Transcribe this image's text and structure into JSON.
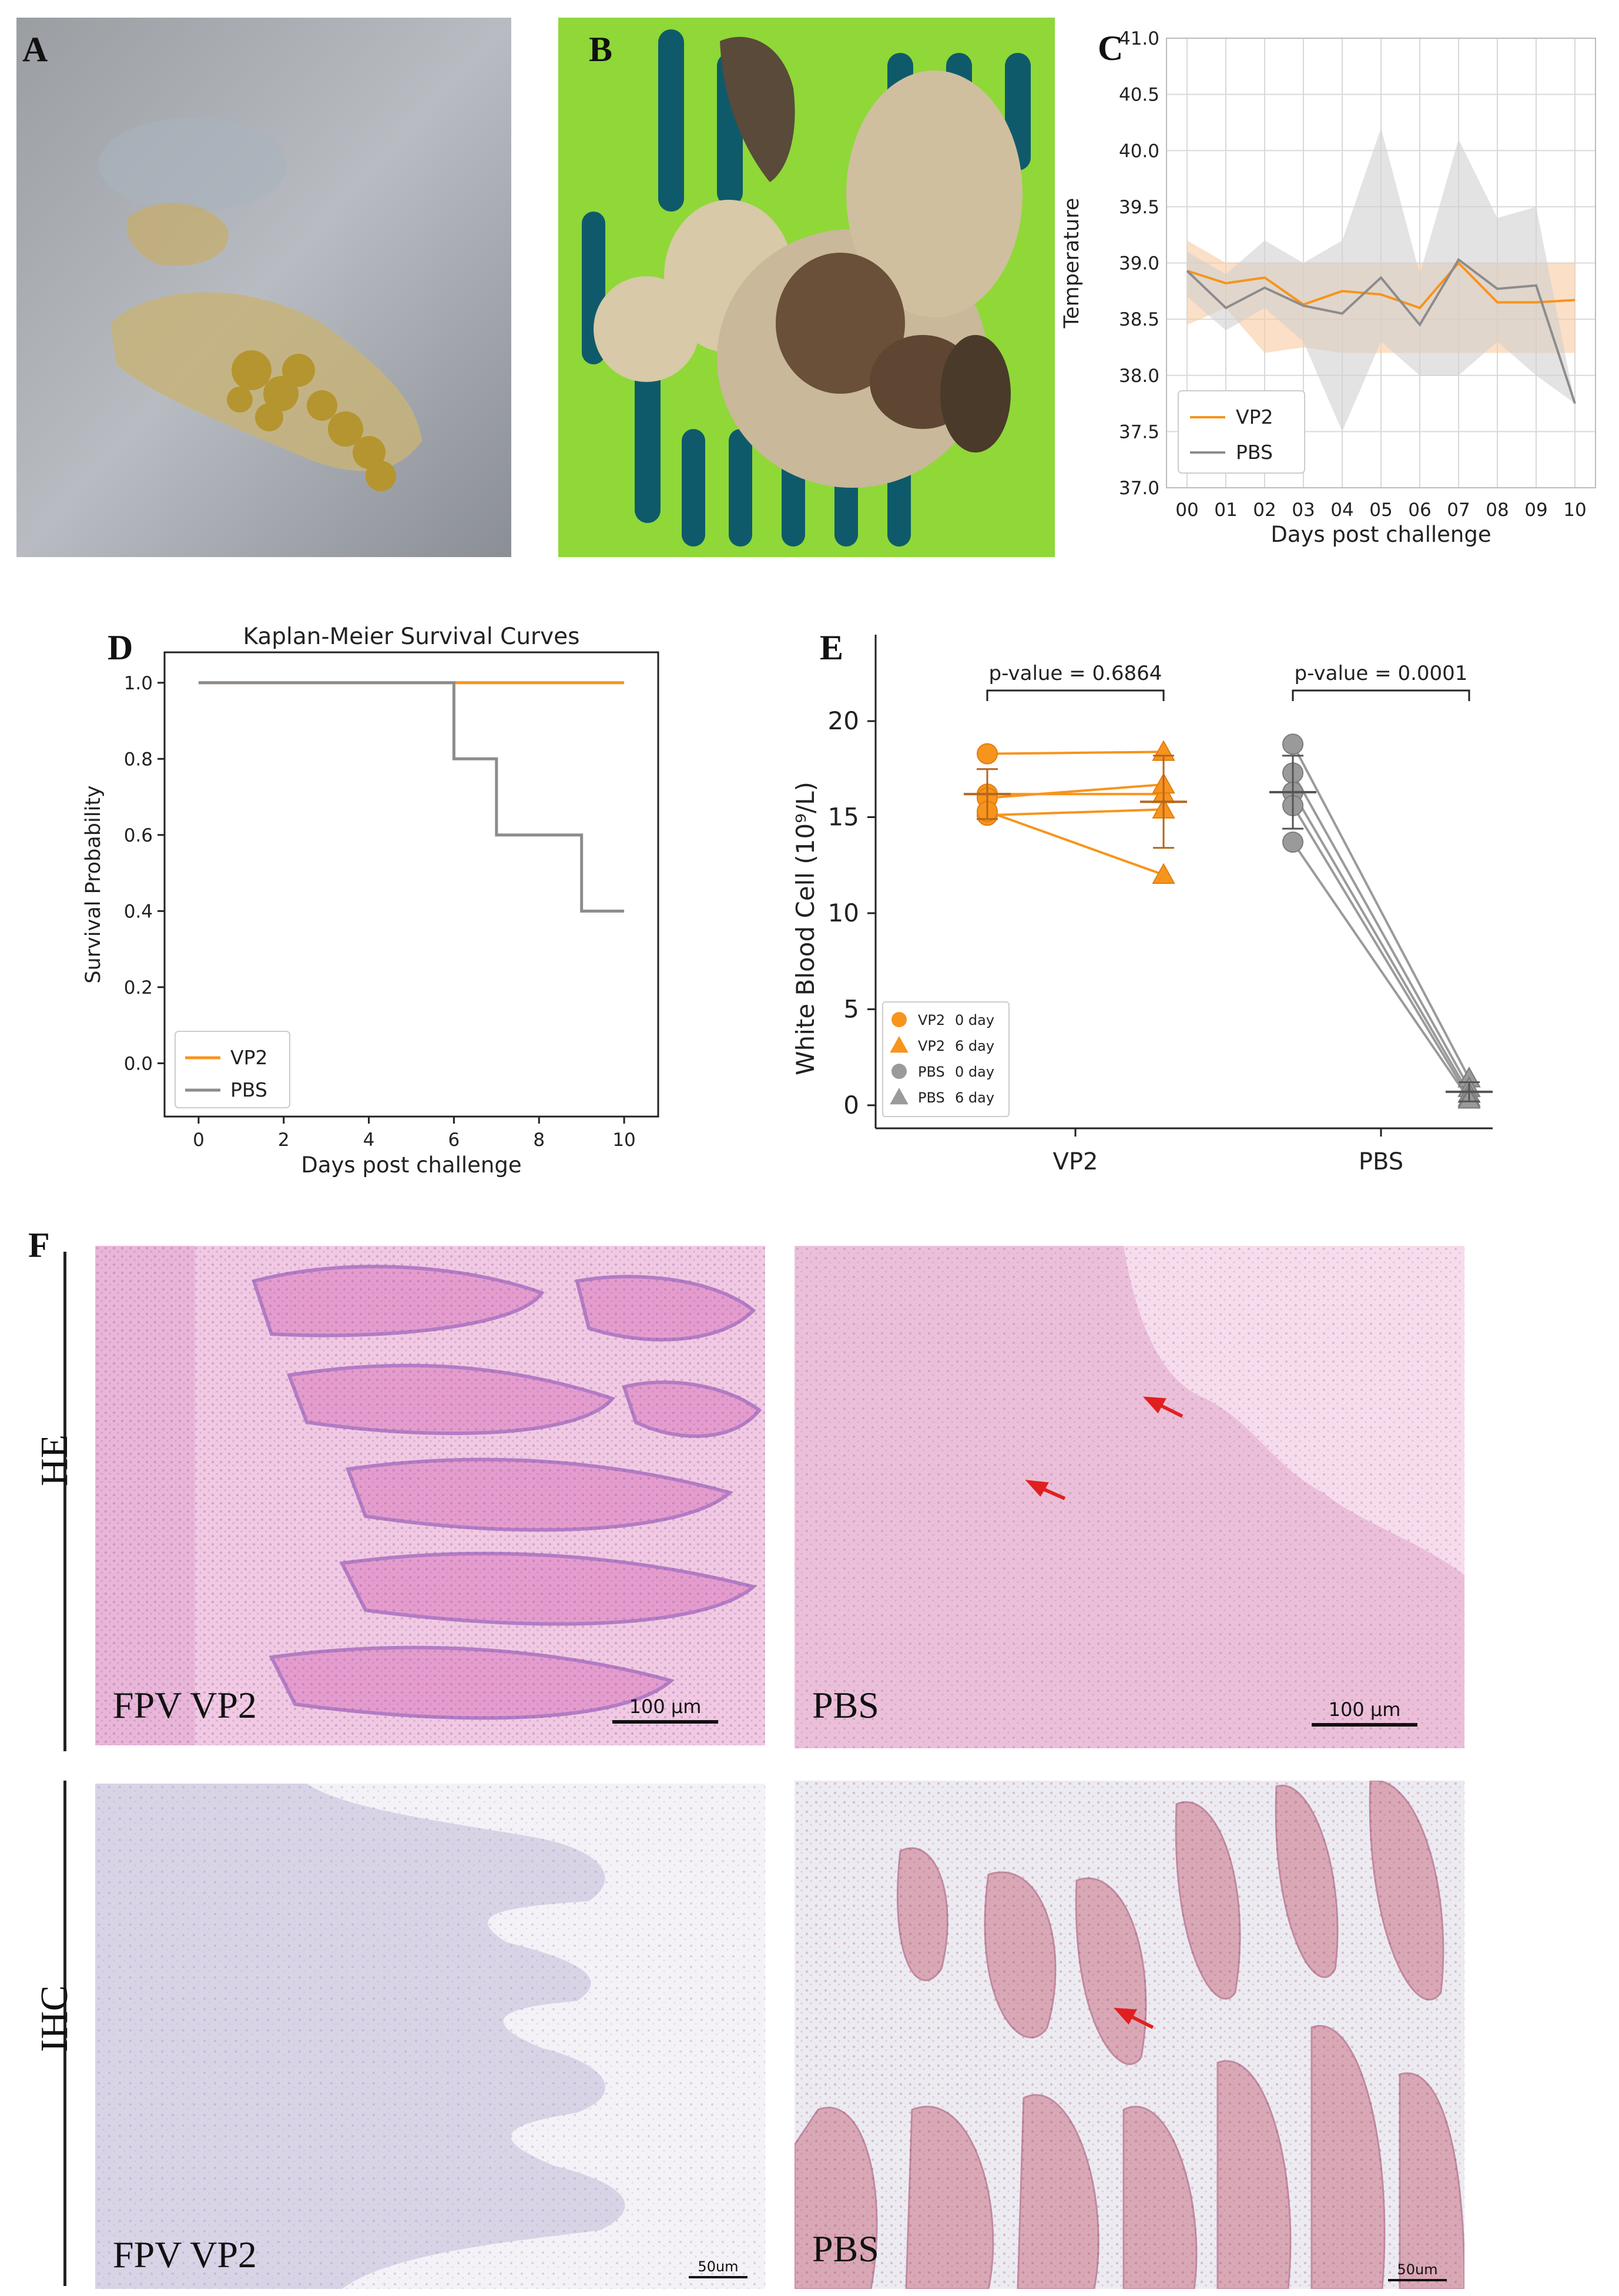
{
  "panels": {
    "a": "A",
    "b": "B",
    "c": "C",
    "d": "D",
    "e": "E",
    "f": "F"
  },
  "row_labels": {
    "he": "HE",
    "ihc": "IHC"
  },
  "histology": {
    "he_left": {
      "caption": "FPV VP2",
      "scale": "100 μm"
    },
    "he_right": {
      "caption": "PBS",
      "scale": "100 μm"
    },
    "ihc_left": {
      "caption": "FPV VP2",
      "scale": "50um"
    },
    "ihc_right": {
      "caption": "PBS",
      "scale": "50um"
    }
  },
  "colors": {
    "vp2": "#F7941D",
    "pbs": "#8C8C8C",
    "vp2_band": "#F9C9A0",
    "pbs_band": "#D0D0D0"
  },
  "chart_data": [
    {
      "id": "C",
      "type": "line",
      "title": "",
      "xlabel": "Days post challenge",
      "ylabel": "Temperature",
      "categories": [
        "00",
        "01",
        "02",
        "03",
        "04",
        "05",
        "06",
        "07",
        "08",
        "09",
        "10"
      ],
      "ylim": [
        37.0,
        41.0
      ],
      "yticks": [
        "37.0",
        "37.5",
        "38.0",
        "38.5",
        "39.0",
        "39.5",
        "40.0",
        "40.5",
        "41.0"
      ],
      "grid": true,
      "legend": "bottom-left",
      "series": [
        {
          "name": "VP2",
          "values": [
            38.93,
            38.82,
            38.87,
            38.63,
            38.75,
            38.72,
            38.6,
            39.0,
            38.65,
            38.65,
            38.67
          ],
          "lower": [
            38.45,
            38.6,
            38.2,
            38.25,
            38.2,
            38.2,
            38.2,
            38.2,
            38.2,
            38.2,
            38.2
          ],
          "upper": [
            39.2,
            39.0,
            39.0,
            39.0,
            39.0,
            39.0,
            39.0,
            39.0,
            39.0,
            39.0,
            39.0
          ]
        },
        {
          "name": "PBS",
          "values": [
            38.93,
            38.6,
            38.78,
            38.62,
            38.55,
            38.87,
            38.45,
            39.03,
            38.77,
            38.8,
            37.75
          ],
          "lower": [
            38.7,
            38.4,
            38.6,
            38.3,
            37.5,
            38.3,
            38.0,
            38.0,
            38.3,
            38.0,
            37.75
          ],
          "upper": [
            39.1,
            38.9,
            39.2,
            39.0,
            39.2,
            40.2,
            38.9,
            40.1,
            39.4,
            39.5,
            37.75
          ]
        }
      ]
    },
    {
      "id": "D",
      "type": "line",
      "title": "Kaplan-Meier Survival Curves",
      "xlabel": "Days post challenge",
      "ylabel": "Survival Probability",
      "xticks": [
        0,
        2,
        4,
        6,
        8,
        10
      ],
      "yticks": [
        "0.0",
        "0.2",
        "0.4",
        "0.6",
        "0.8",
        "1.0"
      ],
      "xlim": [
        -0.8,
        10.8
      ],
      "ylim": [
        -0.14,
        1.08
      ],
      "legend": "bottom-left",
      "series": [
        {
          "name": "VP2",
          "steps": [
            [
              0,
              1.0
            ],
            [
              10,
              1.0
            ]
          ]
        },
        {
          "name": "PBS",
          "steps": [
            [
              0,
              1.0
            ],
            [
              6,
              1.0
            ],
            [
              6,
              0.8
            ],
            [
              7,
              0.8
            ],
            [
              7,
              0.6
            ],
            [
              9,
              0.6
            ],
            [
              9,
              0.4
            ],
            [
              10,
              0.4
            ]
          ]
        }
      ]
    },
    {
      "id": "E",
      "type": "scatter",
      "title": "",
      "xlabel": "",
      "ylabel": "White Blood Cell (10⁹/L)",
      "categories": [
        "VP2",
        "PBS"
      ],
      "yticks": [
        "0",
        "5",
        "10",
        "15",
        "20"
      ],
      "ylim": [
        -1.2,
        24.5
      ],
      "legend": "bottom-left",
      "legend_entries": [
        {
          "group": "VP2",
          "day": "0 day",
          "marker": "circle"
        },
        {
          "group": "VP2",
          "day": "6 day",
          "marker": "triangle"
        },
        {
          "group": "PBS",
          "day": "0 day",
          "marker": "circle"
        },
        {
          "group": "PBS",
          "day": "6 day",
          "marker": "triangle"
        }
      ],
      "groups": [
        {
          "name": "VP2",
          "day0": [
            18.3,
            16.2,
            16.0,
            15.1,
            15.3
          ],
          "day6": [
            18.4,
            16.2,
            16.7,
            15.4,
            12.0
          ],
          "mean0": 16.2,
          "sd0": 1.3,
          "mean6": 15.8,
          "sd6": 2.4,
          "pvalue": "p-value = 0.6864"
        },
        {
          "name": "PBS",
          "day0": [
            18.8,
            17.3,
            16.3,
            15.6,
            13.7
          ],
          "day6": [
            1.4,
            0.9,
            0.6,
            0.4,
            0.3
          ],
          "mean0": 16.3,
          "sd0": 1.9,
          "mean6": 0.7,
          "sd6": 0.5,
          "pvalue": "p-value = 0.0001"
        }
      ]
    }
  ]
}
